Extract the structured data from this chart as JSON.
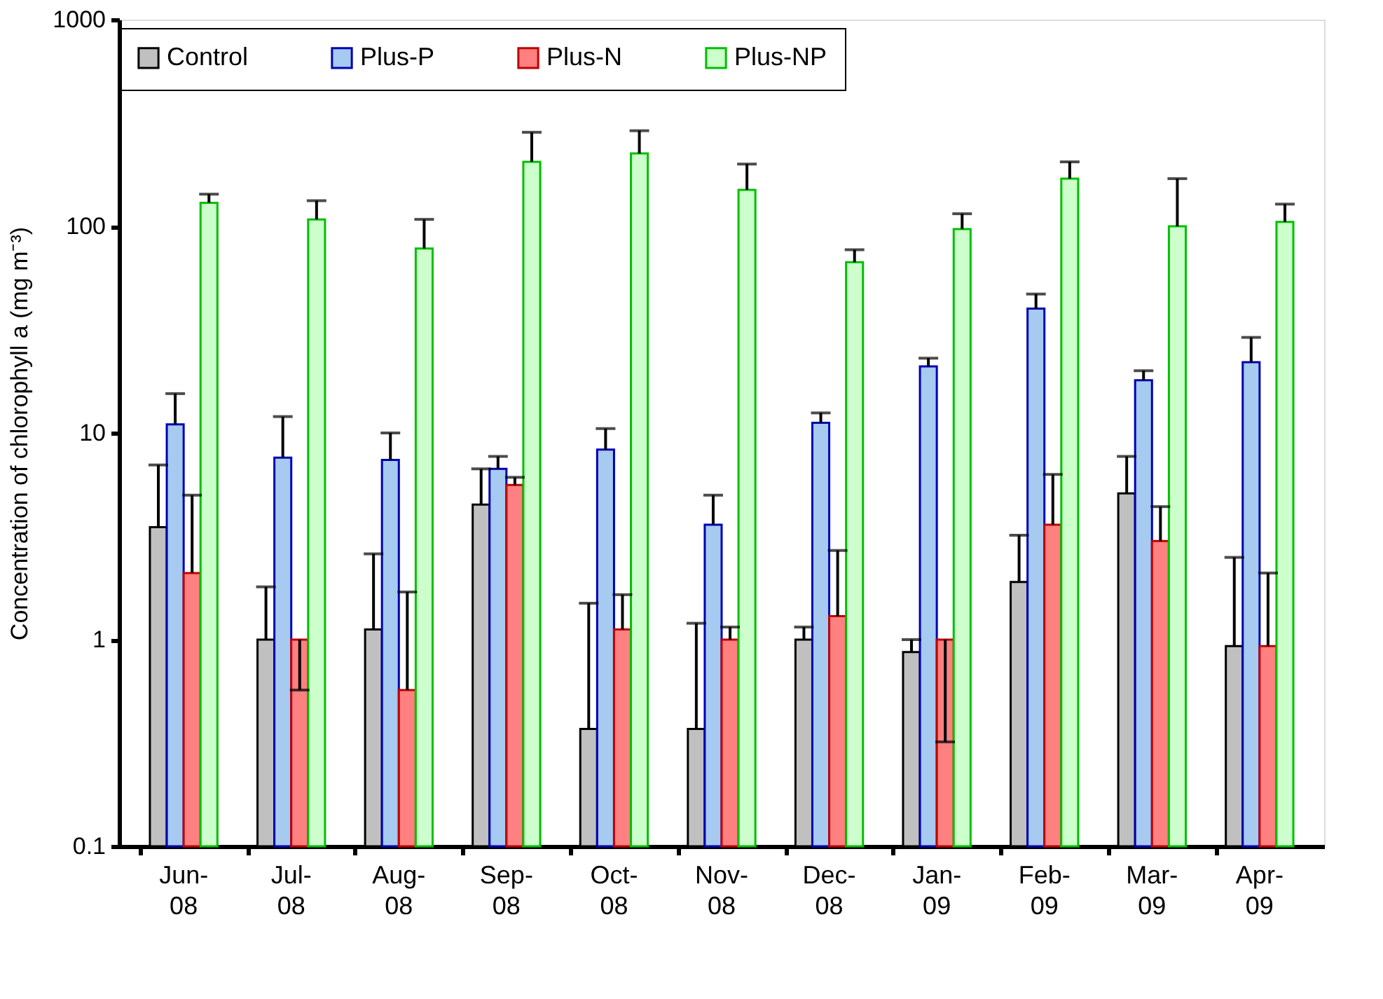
{
  "chart_data": {
    "type": "bar",
    "ylabel": "Concentration of chlorophyll a (mg m⁻³)",
    "categories": [
      "Jun-08",
      "Jul-08",
      "Aug-08",
      "Sep-08",
      "Oct-08",
      "Nov-08",
      "Dec-08",
      "Jan-09",
      "Feb-09",
      "Mar-09",
      "Apr-09"
    ],
    "series": [
      {
        "name": "Control",
        "color": "#c0c0c0",
        "values": [
          3.5,
          1.0,
          1.12,
          4.5,
          0.37,
          0.37,
          1.0,
          0.87,
          1.9,
          5.1,
          0.93
        ],
        "errors": [
          [
            3.5,
            7
          ],
          [
            1.0,
            1.8
          ],
          [
            1.12,
            2.6
          ],
          [
            4.5,
            6.7
          ],
          [
            0.37,
            1.5
          ],
          [
            0.37,
            1.2
          ],
          [
            1.0,
            1.15
          ],
          [
            0.87,
            1.0
          ],
          [
            1.9,
            3.2
          ],
          [
            5.1,
            7.7
          ],
          [
            0.93,
            2.5
          ]
        ]
      },
      {
        "name": "Plus-P",
        "color": "#a6caf0",
        "values": [
          11,
          7.6,
          7.4,
          6.7,
          8.3,
          3.6,
          11.2,
          21,
          40,
          18,
          22
        ],
        "errors": [
          [
            11,
            15.5
          ],
          [
            7.6,
            12
          ],
          [
            7.4,
            10
          ],
          [
            6.7,
            7.7
          ],
          [
            8.3,
            10.5
          ],
          [
            3.6,
            5
          ],
          [
            11.2,
            12.5
          ],
          [
            21,
            23
          ],
          [
            40,
            47
          ],
          [
            18,
            20
          ],
          [
            22,
            29
          ]
        ]
      },
      {
        "name": "Plus-N",
        "color": "#ff8080",
        "values": [
          2.1,
          1.0,
          0.57,
          5.6,
          1.12,
          1.0,
          1.3,
          1.0,
          3.6,
          3.0,
          0.93
        ],
        "errors": [
          [
            2.1,
            5
          ],
          [
            0.57,
            1.0
          ],
          [
            0.57,
            1.7
          ],
          [
            5.6,
            6.1
          ],
          [
            1.12,
            1.65
          ],
          [
            1.0,
            1.15
          ],
          [
            1.3,
            2.7
          ],
          [
            0.32,
            1.0
          ],
          [
            3.6,
            6.3
          ],
          [
            3.0,
            4.4
          ],
          [
            0.93,
            2.1
          ]
        ]
      },
      {
        "name": "Plus-NP",
        "color": "#ccffcc",
        "values": [
          130,
          108,
          78,
          205,
          225,
          150,
          67,
          97,
          170,
          100,
          105
        ],
        "errors": [
          [
            130,
            143
          ],
          [
            108,
            133
          ],
          [
            78,
            108
          ],
          [
            205,
            285
          ],
          [
            225,
            290
          ],
          [
            150,
            200
          ],
          [
            67,
            77
          ],
          [
            97,
            115
          ],
          [
            170,
            205
          ],
          [
            100,
            170
          ],
          [
            105,
            128
          ]
        ]
      }
    ],
    "ylim": [
      0.1,
      1000
    ],
    "yticks": [
      0.1,
      1,
      10,
      100,
      1000
    ],
    "log": true,
    "grid": false,
    "legend": "top"
  }
}
